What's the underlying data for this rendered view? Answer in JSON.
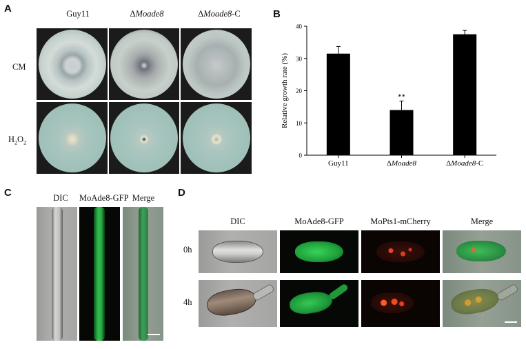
{
  "panels": {
    "A": {
      "letter": "A",
      "columns": [
        {
          "prefix": "",
          "name": "Guy11",
          "suffix": ""
        },
        {
          "prefix": "Δ",
          "name": "Moade8",
          "suffix": ""
        },
        {
          "prefix": "Δ",
          "name": "Moade8",
          "suffix": "-C"
        }
      ],
      "rows": {
        "cm": "CM",
        "h2o2_main": "H",
        "h2o2_sub1": "2",
        "h2o2_mid": "O",
        "h2o2_sub2": "2"
      }
    },
    "B": {
      "letter": "B"
    },
    "C": {
      "letter": "C",
      "columns": [
        "DIC",
        "MoAde8-GFP",
        "Merge"
      ]
    },
    "D": {
      "letter": "D",
      "columns": [
        "DIC",
        "MoAde8-GFP",
        "MoPts1-mCherry",
        "Merge"
      ],
      "rows": [
        "0h",
        "4h"
      ]
    }
  },
  "chart_data": {
    "type": "bar",
    "categories": [
      "Guy11",
      "ΔMoade8",
      "ΔMoade8-C"
    ],
    "category_parts": [
      {
        "prefix": "",
        "name": "Guy11",
        "suffix": ""
      },
      {
        "prefix": "Δ",
        "name": "Moade8",
        "suffix": ""
      },
      {
        "prefix": "Δ",
        "name": "Moade8",
        "suffix": "-C"
      }
    ],
    "values": [
      31.5,
      14,
      37.5
    ],
    "errors": [
      2.2,
      2.8,
      1.2
    ],
    "annotations": [
      "",
      "**",
      ""
    ],
    "ylabel": "Relative growth rate (%)",
    "ylim": [
      0,
      40
    ],
    "yticks": [
      0,
      10,
      20,
      30,
      40
    ],
    "bar_color": "#000000",
    "grid": false
  }
}
